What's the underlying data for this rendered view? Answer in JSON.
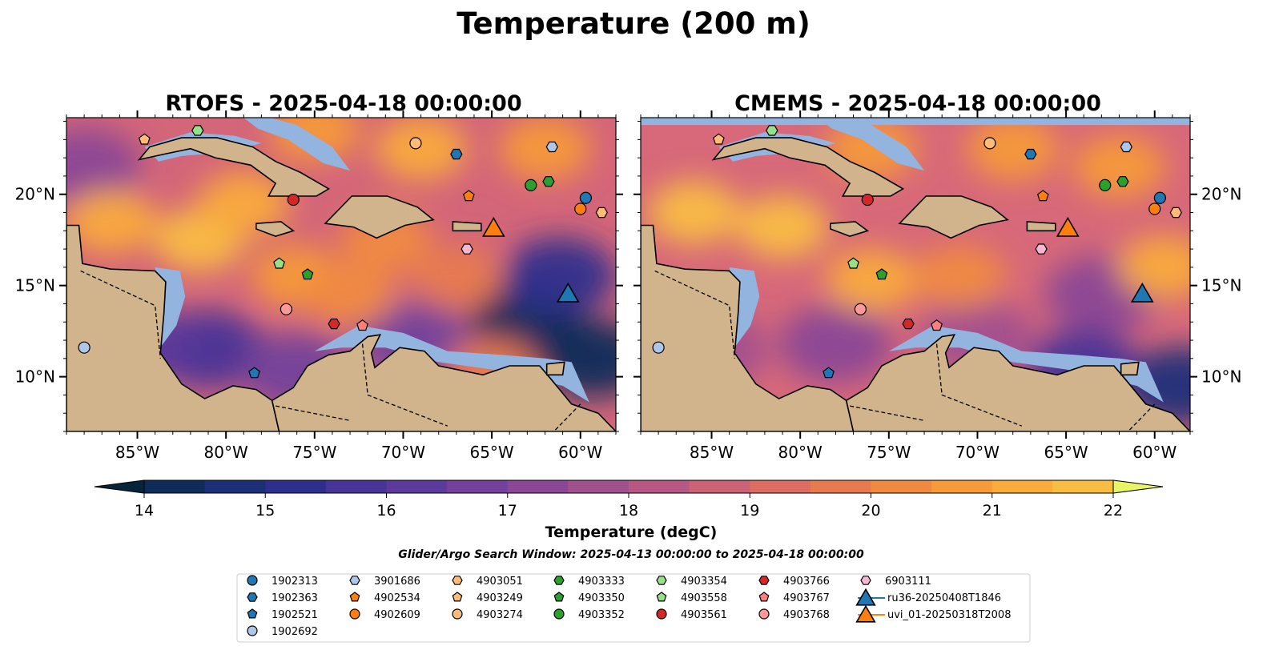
{
  "figure": {
    "title": "Temperature (200 m)",
    "note": "Glider/Argo Search Window: 2025-04-13 00:00:00 to 2025-04-18 00:00:00"
  },
  "colors": {
    "ocean_bg": "#4a3590",
    "land": "#d2b48c",
    "shelf": "#94b4e0",
    "deep": "#07253a",
    "colormap": [
      "#07253a",
      "#0f2b5a",
      "#1c2e78",
      "#2e2f8c",
      "#463497",
      "#5c3a9b",
      "#73409b",
      "#8a4796",
      "#a1508e",
      "#b75884",
      "#cb6275",
      "#db6d62",
      "#e77b4f",
      "#f08a40",
      "#f69a3a",
      "#f9ab3c",
      "#f9bd44",
      "#f3d04f",
      "#e8f564"
    ]
  },
  "chart_data": [
    {
      "type": "heatmap",
      "title": "RTOFS - 2025-04-18 00:00:00",
      "model": "RTOFS",
      "x_ticks": [
        "85°W",
        "80°W",
        "75°W",
        "70°W",
        "65°W",
        "60°W"
      ],
      "x_tick_values": [
        -85,
        -80,
        -75,
        -70,
        -65,
        -60
      ],
      "y_ticks": [
        "20°N",
        "15°N",
        "10°N"
      ],
      "y_tick_values": [
        20,
        15,
        10
      ],
      "xlim": [
        -89,
        -58
      ],
      "ylim": [
        7,
        24.2
      ],
      "y_axis_side": "left",
      "warm_spots": [
        {
          "lon": -81.5,
          "lat": 17.5,
          "temp": 21.8
        },
        {
          "lon": -86.5,
          "lat": 18.5,
          "temp": 21.2
        },
        {
          "lon": -79,
          "lat": 19.5,
          "temp": 21.0
        },
        {
          "lon": -76,
          "lat": 15.5,
          "temp": 20.5
        },
        {
          "lon": -71,
          "lat": 17.5,
          "temp": 20.3
        },
        {
          "lon": -69,
          "lat": 22.5,
          "temp": 21.0
        },
        {
          "lon": -62,
          "lat": 22.5,
          "temp": 20.6
        },
        {
          "lon": -73,
          "lat": 14.5,
          "temp": 20.0
        },
        {
          "lon": -67,
          "lat": 15.5,
          "temp": 19.6
        },
        {
          "lon": -75,
          "lat": 23.5,
          "temp": 20.8
        },
        {
          "lon": -65,
          "lat": 10.3,
          "temp": 19.5
        }
      ],
      "cool_spots": [
        {
          "lon": -63,
          "lat": 13.0,
          "temp": 14.2
        },
        {
          "lon": -61.2,
          "lat": 15.5,
          "temp": 15.0
        },
        {
          "lon": -59.3,
          "lat": 11.0,
          "temp": 14.2
        },
        {
          "lon": -81,
          "lat": 11.5,
          "temp": 15.5
        },
        {
          "lon": -85,
          "lat": 11.8,
          "temp": 16.2
        },
        {
          "lon": -76,
          "lat": 10.3,
          "temp": 16.5
        },
        {
          "lon": -69.5,
          "lat": 12.0,
          "temp": 16.8
        },
        {
          "lon": -88,
          "lat": 21.5,
          "temp": 17.0
        }
      ]
    },
    {
      "type": "heatmap",
      "title": "CMEMS - 2025-04-18 00:00:00",
      "model": "CMEMS",
      "x_ticks": [
        "85°W",
        "80°W",
        "75°W",
        "70°W",
        "65°W",
        "60°W"
      ],
      "x_tick_values": [
        -85,
        -80,
        -75,
        -70,
        -65,
        -60
      ],
      "y_ticks": [
        "20°N",
        "15°N",
        "10°N"
      ],
      "y_tick_values": [
        20,
        15,
        10
      ],
      "xlim": [
        -89,
        -58
      ],
      "ylim": [
        7,
        24.2
      ],
      "y_axis_side": "right",
      "warm_spots": [
        {
          "lon": -86,
          "lat": 19.0,
          "temp": 21.5
        },
        {
          "lon": -81,
          "lat": 18.2,
          "temp": 21.5
        },
        {
          "lon": -76,
          "lat": 15.3,
          "temp": 21.0
        },
        {
          "lon": -71,
          "lat": 15.5,
          "temp": 20.4
        },
        {
          "lon": -68,
          "lat": 22.5,
          "temp": 20.5
        },
        {
          "lon": -62,
          "lat": 21.5,
          "temp": 20.7
        },
        {
          "lon": -59.5,
          "lat": 16.0,
          "temp": 21.0
        },
        {
          "lon": -76,
          "lat": 22.5,
          "temp": 20.6
        }
      ],
      "cool_spots": [
        {
          "lon": -63,
          "lat": 14.5,
          "temp": 17.0
        },
        {
          "lon": -78,
          "lat": 11.8,
          "temp": 17.2
        },
        {
          "lon": -70,
          "lat": 12.2,
          "temp": 17.8
        },
        {
          "lon": -58.5,
          "lat": 9.5,
          "temp": 14.5
        },
        {
          "lon": -64,
          "lat": 10.5,
          "temp": 15.5
        },
        {
          "lon": -85,
          "lat": 11.5,
          "temp": 17.5
        }
      ]
    },
    {
      "type": "colorbar",
      "label": "Temperature (degC)",
      "ticks": [
        "14",
        "15",
        "16",
        "17",
        "18",
        "19",
        "20",
        "21",
        "22"
      ],
      "range": [
        14,
        22
      ],
      "step": 0.5,
      "extend": "both"
    }
  ],
  "markers": [
    {
      "id": "1902313",
      "shape": "circle",
      "color": "#1f77b4",
      "lon": -59.7,
      "lat": 19.8
    },
    {
      "id": "1902363",
      "shape": "hexagon",
      "color": "#1f77b4",
      "lon": -67.0,
      "lat": 22.2
    },
    {
      "id": "1902521",
      "shape": "pentagon",
      "color": "#1f77b4",
      "lon": -78.4,
      "lat": 10.2
    },
    {
      "id": "1902692",
      "shape": "circle",
      "color": "#aec7e8",
      "lon": -88.0,
      "lat": 11.6
    },
    {
      "id": "3901686",
      "shape": "hexagon",
      "color": "#aec7e8",
      "lon": -61.6,
      "lat": 22.6
    },
    {
      "id": "4902534",
      "shape": "pentagon",
      "color": "#ff7f0e",
      "lon": -66.3,
      "lat": 19.9
    },
    {
      "id": "4902609",
      "shape": "circle",
      "color": "#ff7f0e",
      "lon": -60.0,
      "lat": 19.2
    },
    {
      "id": "4903051",
      "shape": "hexagon",
      "color": "#ffbb78",
      "lon": -58.8,
      "lat": 19.0
    },
    {
      "id": "4903249",
      "shape": "pentagon",
      "color": "#ffbb78",
      "lon": -84.6,
      "lat": 23.0
    },
    {
      "id": "4903274",
      "shape": "circle",
      "color": "#ffbb78",
      "lon": -69.3,
      "lat": 22.8
    },
    {
      "id": "4903333",
      "shape": "hexagon",
      "color": "#2ca02c",
      "lon": -61.8,
      "lat": 20.7
    },
    {
      "id": "4903350",
      "shape": "pentagon",
      "color": "#2ca02c",
      "lon": -75.4,
      "lat": 15.6
    },
    {
      "id": "4903352",
      "shape": "circle",
      "color": "#2ca02c",
      "lon": -62.8,
      "lat": 20.5
    },
    {
      "id": "4903354",
      "shape": "hexagon",
      "color": "#98df8a",
      "lon": -81.6,
      "lat": 23.5
    },
    {
      "id": "4903558",
      "shape": "pentagon",
      "color": "#98df8a",
      "lon": -77.0,
      "lat": 16.2
    },
    {
      "id": "4903561",
      "shape": "circle",
      "color": "#d62728",
      "lon": -76.2,
      "lat": 19.7
    },
    {
      "id": "4903766",
      "shape": "hexagon",
      "color": "#d62728",
      "lon": -73.9,
      "lat": 12.9
    },
    {
      "id": "4903767",
      "shape": "pentagon",
      "color": "#ff7f7f",
      "lon": -72.3,
      "lat": 12.8
    },
    {
      "id": "4903768",
      "shape": "circle",
      "color": "#ff9896",
      "lon": -76.6,
      "lat": 13.7
    },
    {
      "id": "6903111",
      "shape": "hexagon",
      "color": "#f7b6d2",
      "lon": -66.4,
      "lat": 17.0
    },
    {
      "id": "ru36-20250408T1846",
      "shape": "triangle",
      "color": "#1f77b4",
      "lon": -60.7,
      "lat": 14.6
    },
    {
      "id": "uvi_01-20250318T2008",
      "shape": "triangle",
      "color": "#ff7f0e",
      "lon": -64.9,
      "lat": 18.2
    }
  ],
  "legend": {
    "columns": [
      [
        "1902313",
        "1902363",
        "1902521",
        "1902692"
      ],
      [
        "3901686",
        "4902534",
        "4902609"
      ],
      [
        "4903051",
        "4903249",
        "4903274"
      ],
      [
        "4903333",
        "4903350",
        "4903352"
      ],
      [
        "4903354",
        "4903558",
        "4903561"
      ],
      [
        "4903766",
        "4903767",
        "4903768"
      ],
      [
        "6903111",
        "ru36-20250408T1846",
        "uvi_01-20250318T2008"
      ]
    ]
  }
}
